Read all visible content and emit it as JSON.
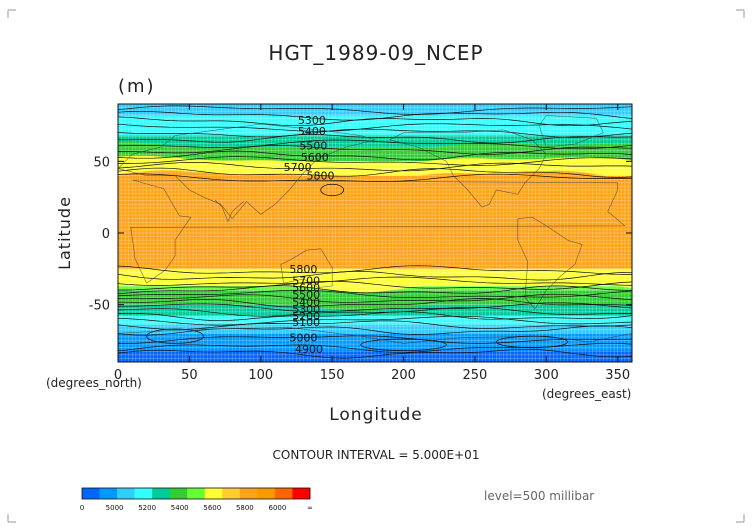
{
  "chart_data": {
    "type": "heatmap",
    "title": "HGT_1989-09_NCEP",
    "subtitle": "(m)",
    "xlabel": "Longitude",
    "ylabel": "Latitude",
    "x_unit": "(degrees_east)",
    "y_unit": "(degrees_north)",
    "xlim": [
      0,
      360
    ],
    "ylim": [
      -90,
      90
    ],
    "x_ticks": [
      0,
      50,
      100,
      150,
      200,
      250,
      300,
      350
    ],
    "y_ticks": [
      50,
      0,
      -50
    ],
    "contour_interval_text": "CONTOUR INTERVAL = 5.000E+01",
    "level_text": "level=500 millibar",
    "contour_labels": [
      {
        "lon": 126,
        "lat": 79,
        "value": "5300"
      },
      {
        "lon": 126,
        "lat": 71,
        "value": "5400"
      },
      {
        "lon": 127,
        "lat": 61,
        "value": "5500"
      },
      {
        "lon": 128,
        "lat": 53,
        "value": "5600"
      },
      {
        "lon": 116,
        "lat": 46,
        "value": "5700"
      },
      {
        "lon": 132,
        "lat": 40,
        "value": "5800"
      },
      {
        "lon": 120,
        "lat": -25,
        "value": "5800"
      },
      {
        "lon": 122,
        "lat": -33,
        "value": "5700"
      },
      {
        "lon": 122,
        "lat": -38,
        "value": "5600"
      },
      {
        "lon": 122,
        "lat": -43,
        "value": "5500"
      },
      {
        "lon": 122,
        "lat": -48,
        "value": "5400"
      },
      {
        "lon": 122,
        "lat": -53,
        "value": "5300"
      },
      {
        "lon": 122,
        "lat": -58,
        "value": "5200"
      },
      {
        "lon": 122,
        "lat": -62,
        "value": "5100"
      },
      {
        "lon": 120,
        "lat": -73,
        "value": "5000"
      },
      {
        "lon": 124,
        "lat": -81,
        "value": "4900"
      }
    ],
    "bands": [
      {
        "lat_top": 90,
        "lat_bottom": 82,
        "color": "#33ccff"
      },
      {
        "lat_top": 82,
        "lat_bottom": 68,
        "color": "#33ffff"
      },
      {
        "lat_top": 68,
        "lat_bottom": 60,
        "color": "#00cc99"
      },
      {
        "lat_top": 60,
        "lat_bottom": 50,
        "color": "#33cc33"
      },
      {
        "lat_top": 50,
        "lat_bottom": 40,
        "color": "#ffff33"
      },
      {
        "lat_top": 40,
        "lat_bottom": -25,
        "color": "#ffa31a"
      },
      {
        "lat_top": -25,
        "lat_bottom": -37,
        "color": "#ffff33"
      },
      {
        "lat_top": -37,
        "lat_bottom": -40,
        "color": "#66ff33"
      },
      {
        "lat_top": -40,
        "lat_bottom": -50,
        "color": "#33cc33"
      },
      {
        "lat_top": -50,
        "lat_bottom": -58,
        "color": "#00cc99"
      },
      {
        "lat_top": -58,
        "lat_bottom": -64,
        "color": "#33ffff"
      },
      {
        "lat_top": -64,
        "lat_bottom": -70,
        "color": "#33ccff"
      },
      {
        "lat_top": -70,
        "lat_bottom": -82,
        "color": "#0099ff"
      },
      {
        "lat_top": -82,
        "lat_bottom": -90,
        "color": "#0066ff"
      }
    ],
    "colorbar": {
      "labels": [
        "0",
        "5000",
        "5200",
        "5400",
        "5600",
        "5800",
        "6000",
        "∞"
      ],
      "colors": [
        "#0066ff",
        "#0099ff",
        "#33ccff",
        "#33ffff",
        "#00cc99",
        "#33cc33",
        "#66ff33",
        "#ffff33",
        "#ffcc33",
        "#ffa31a",
        "#ff9900",
        "#ff6600",
        "#ff0000"
      ]
    }
  }
}
